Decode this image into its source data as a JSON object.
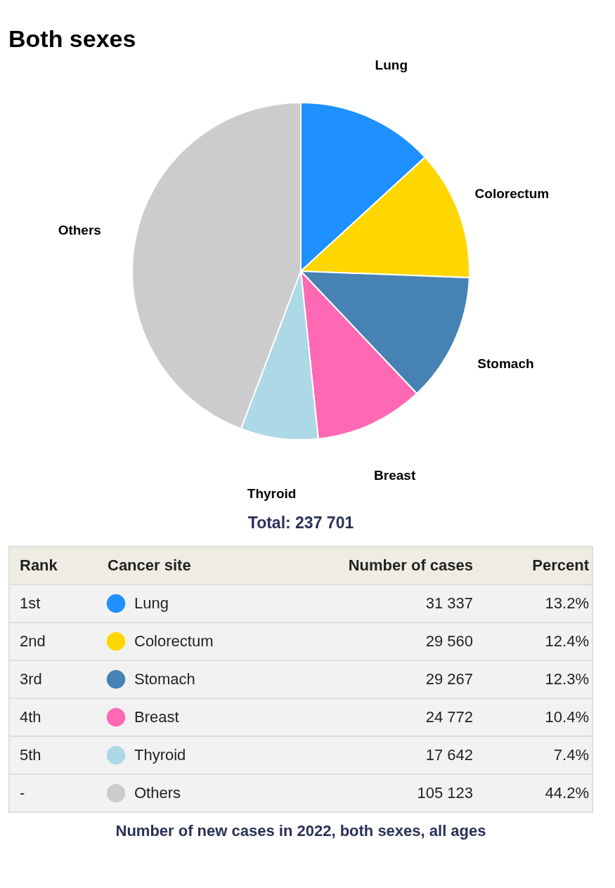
{
  "chart_data": {
    "type": "pie",
    "title": "Both sexes",
    "categories": [
      "Lung",
      "Colorectum",
      "Stomach",
      "Breast",
      "Thyroid",
      "Others"
    ],
    "values": [
      31337,
      29560,
      29267,
      24772,
      17642,
      105123
    ],
    "colors": [
      "#1e90ff",
      "#ffd700",
      "#4682b4",
      "#ff69b4",
      "#add8e6",
      "#cccccc"
    ],
    "value_labels": [
      "31 337",
      "29 560",
      "29 267",
      "24 772",
      "17 642",
      "105 123"
    ],
    "legend": "bottom",
    "annotations": [
      "Total: 237 701",
      "Rank",
      "Cancer site",
      "Number of cases",
      "Percent",
      "1st",
      "2nd",
      "3rd",
      "4th",
      "5th",
      "-",
      "13.2%",
      "12.4%",
      "12.3%",
      "10.4%",
      "7.4%",
      "44.2%",
      "Number of new cases in 2022, both sexes, all ages"
    ]
  }
}
